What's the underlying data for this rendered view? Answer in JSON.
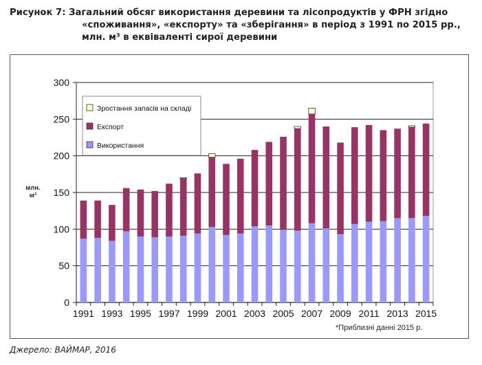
{
  "title": {
    "line1": "Рисунок 7: Загальний обсяг використання деревини та лісопродуктів у ФРН згідно",
    "line2": "«споживання», «експорту» та «зберігання» в період з 1991 по 2015 рр.,",
    "line3": "млн. м³ в еквіваленті сирої деревини"
  },
  "source": "Джерело: ВАЙМАР, 2016",
  "chart_data": {
    "type": "bar",
    "stacked": true,
    "x": [
      1991,
      1992,
      1993,
      1994,
      1995,
      1996,
      1997,
      1998,
      1999,
      2000,
      2001,
      2002,
      2003,
      2004,
      2005,
      2006,
      2007,
      2008,
      2009,
      2010,
      2011,
      2012,
      2013,
      2014,
      2015
    ],
    "x_tick_labels": [
      "1991",
      "1993",
      "1995",
      "1997",
      "1999",
      "2001",
      "2003",
      "2005",
      "2007",
      "2009",
      "2011",
      "2013",
      "2015"
    ],
    "ylabel_line1": "млн.",
    "ylabel_line2": "м³",
    "ylim": [
      0,
      300
    ],
    "y_ticks": [
      0,
      50,
      100,
      150,
      200,
      250,
      300
    ],
    "grid": true,
    "legend_position": "top-left",
    "note": "*Приблизні данні 2015 р.",
    "series": [
      {
        "name": "Використання",
        "color": "#9999ff",
        "values": [
          87,
          88,
          84,
          97,
          90,
          89,
          90,
          91,
          94,
          103,
          92,
          94,
          104,
          105,
          99,
          98,
          108,
          101,
          93,
          107,
          110,
          111,
          115,
          115,
          118
        ]
      },
      {
        "name": "Експорт",
        "color": "#993366",
        "values": [
          52,
          51,
          49,
          59,
          64,
          63,
          72,
          78,
          82,
          95,
          97,
          102,
          104,
          114,
          127,
          139,
          149,
          139,
          125,
          132,
          132,
          124,
          122,
          124,
          126
        ]
      },
      {
        "name": "Зростання запасів на складі",
        "color": "#ffffcc",
        "values": [
          0,
          0,
          0,
          0,
          0,
          0,
          0,
          1,
          0,
          5,
          0,
          0,
          0,
          0,
          0,
          3,
          8,
          0,
          0,
          0,
          0,
          0,
          0,
          2,
          0
        ]
      }
    ]
  }
}
